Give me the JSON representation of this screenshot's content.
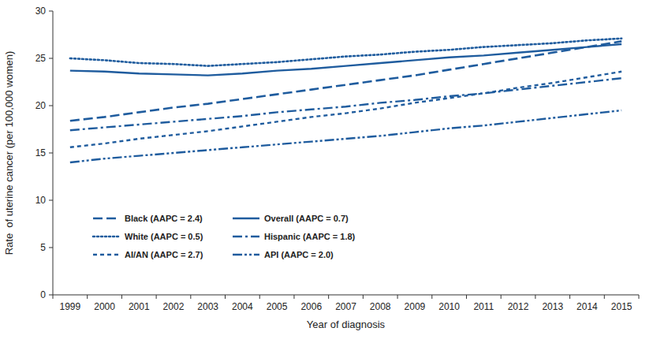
{
  "chart_data": {
    "type": "line",
    "x_label": "Year of diagnosis",
    "y_label": "Rate  of uterine cancer (per 100,000 women)",
    "categories": [
      "1999",
      "2000",
      "2001",
      "2002",
      "2003",
      "2004",
      "2005",
      "2006",
      "2007",
      "2008",
      "2009",
      "2010",
      "2011",
      "2012",
      "2013",
      "2014",
      "2015"
    ],
    "ylim": [
      0,
      30
    ],
    "yticks": [
      0,
      5,
      10,
      15,
      20,
      25,
      30
    ],
    "grid": false,
    "legend": "bottom-left",
    "series": [
      {
        "name": "Black (AAPC = 2.4)",
        "color": "#1f5c9e",
        "line_style": "longdash",
        "values": [
          18.4,
          18.8,
          19.3,
          19.8,
          20.2,
          20.7,
          21.2,
          21.7,
          22.2,
          22.7,
          23.2,
          23.8,
          24.4,
          25.0,
          25.6,
          26.2,
          26.8
        ]
      },
      {
        "name": "White (AAPC = 0.5)",
        "color": "#1f5c9e",
        "line_style": "dotted",
        "values": [
          25.0,
          24.8,
          24.5,
          24.4,
          24.2,
          24.4,
          24.6,
          24.9,
          25.2,
          25.4,
          25.7,
          25.9,
          26.2,
          26.4,
          26.6,
          26.9,
          27.1
        ]
      },
      {
        "name": "AI/AN (AAPC = 2.7)",
        "color": "#1f5c9e",
        "line_style": "dashed",
        "values": [
          15.6,
          16.0,
          16.5,
          16.9,
          17.3,
          17.8,
          18.3,
          18.8,
          19.2,
          19.7,
          20.3,
          20.8,
          21.3,
          21.9,
          22.4,
          23.0,
          23.6
        ]
      },
      {
        "name": "Overall (AAPC = 0.7)",
        "color": "#1f5c9e",
        "line_style": "solid",
        "values": [
          23.7,
          23.6,
          23.4,
          23.3,
          23.2,
          23.4,
          23.7,
          23.9,
          24.2,
          24.5,
          24.8,
          25.1,
          25.3,
          25.6,
          25.9,
          26.2,
          26.5
        ]
      },
      {
        "name": "Hispanic (AAPC = 1.8)",
        "color": "#1f5c9e",
        "line_style": "dashdot",
        "values": [
          17.4,
          17.7,
          18.0,
          18.3,
          18.6,
          18.9,
          19.3,
          19.6,
          19.9,
          20.3,
          20.6,
          21.0,
          21.3,
          21.7,
          22.1,
          22.5,
          22.9
        ]
      },
      {
        "name": "API (AAPC = 2.0)",
        "color": "#1f5c9e",
        "line_style": "dashdotdot",
        "values": [
          14.0,
          14.4,
          14.7,
          15.0,
          15.3,
          15.6,
          15.9,
          16.2,
          16.5,
          16.8,
          17.2,
          17.6,
          17.9,
          18.3,
          18.7,
          19.1,
          19.5
        ]
      }
    ]
  }
}
